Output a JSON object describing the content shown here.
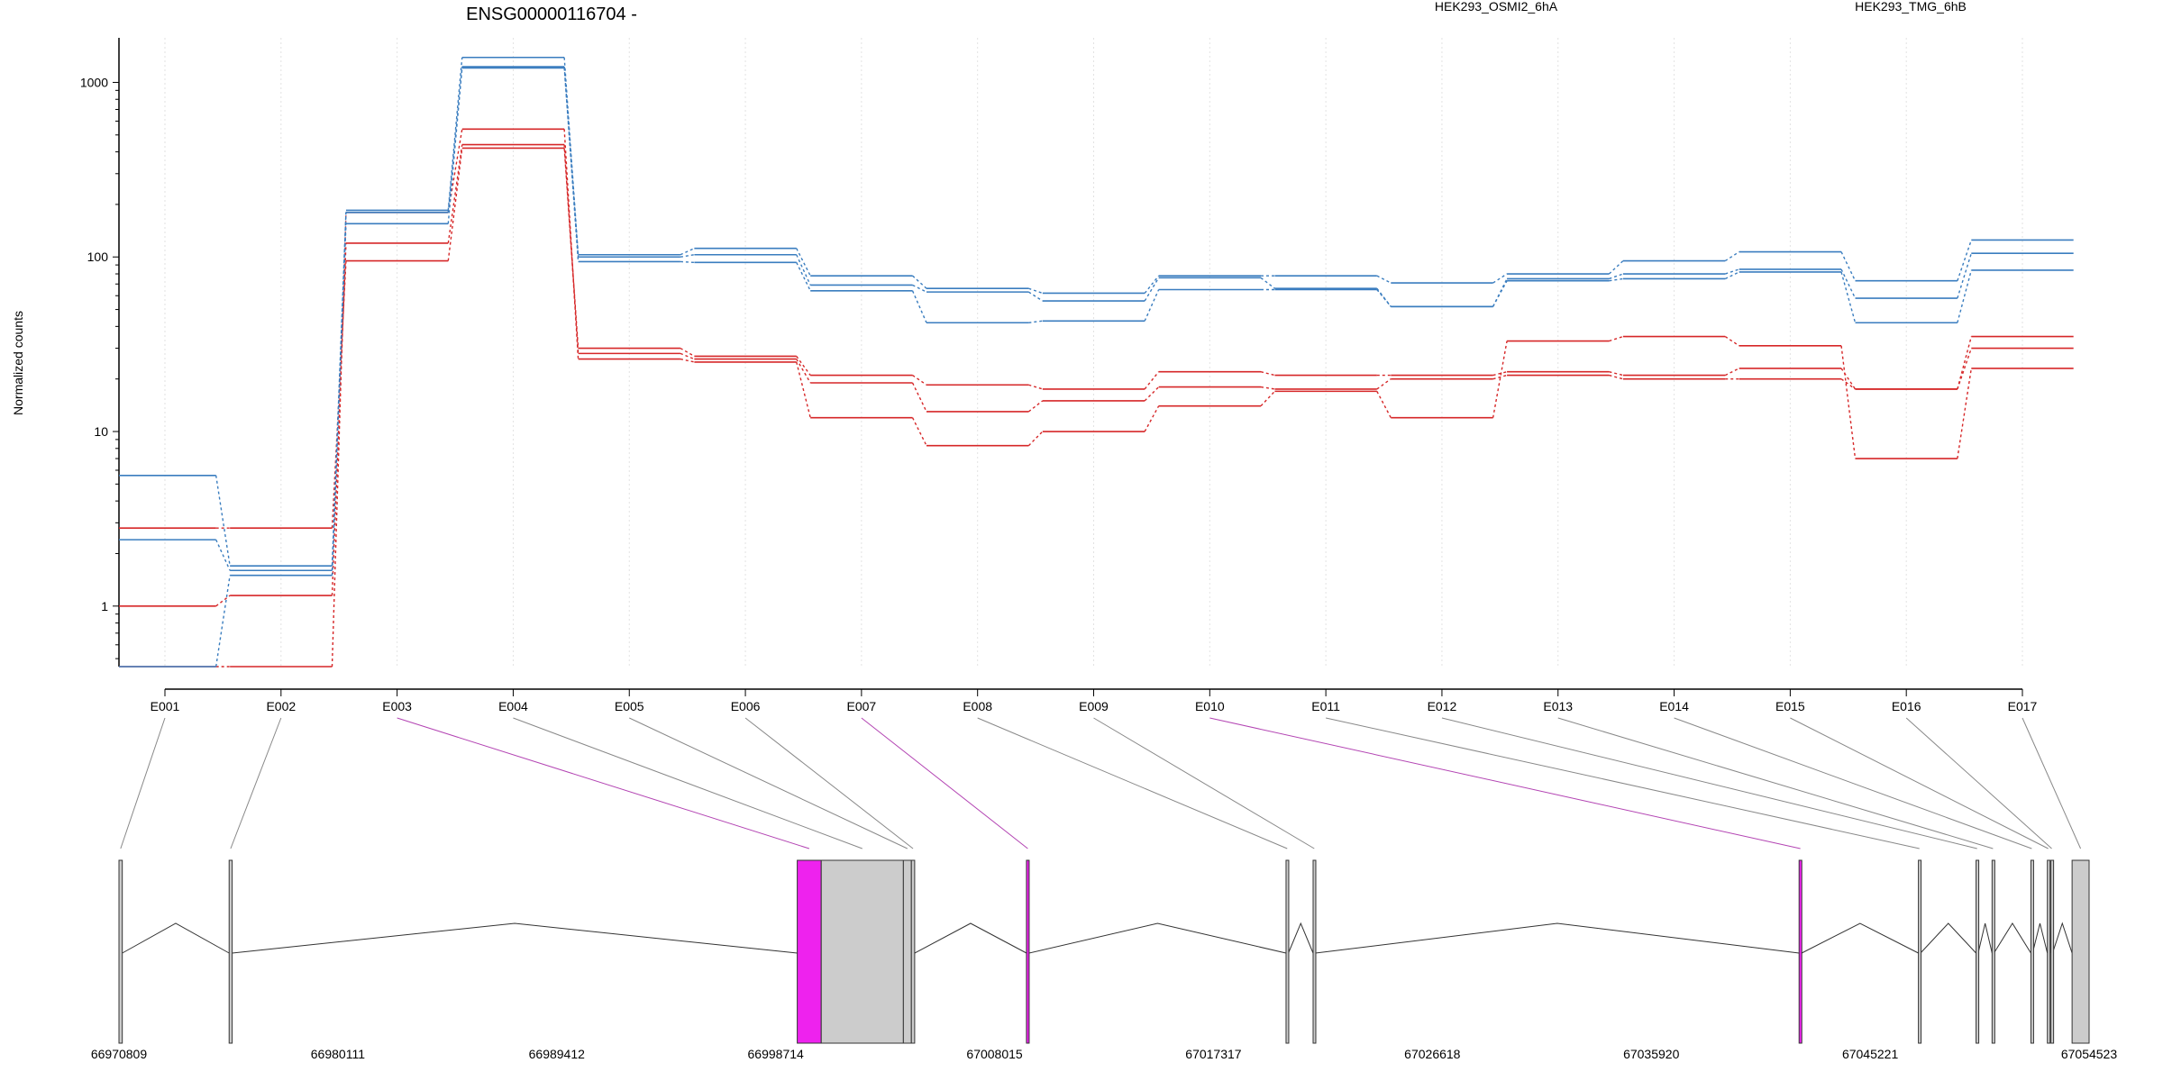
{
  "title": "ENSG00000116704 -",
  "ylabel": "Normalized counts",
  "legend": [
    {
      "label": "HEK293_OSMI2_6hA",
      "color": "#d62728"
    },
    {
      "label": "HEK293_TMG_6hB",
      "color": "#3a7dbf"
    }
  ],
  "chart_data": {
    "type": "line",
    "title": "ENSG00000116704 -",
    "ylabel": "Normalized counts",
    "yscale": "log",
    "ylim": [
      0.45,
      1800
    ],
    "yticks": [
      "1",
      "10",
      "100",
      "1000"
    ],
    "grid": "vertical dotted",
    "legend_placement": "top",
    "categories": [
      "E001",
      "E002",
      "E003",
      "E004",
      "E005",
      "E006",
      "E007",
      "E008",
      "E009",
      "E010",
      "E011",
      "E012",
      "E013",
      "E014",
      "E015",
      "E016",
      "E017"
    ],
    "series": [
      {
        "name": "HEK293_OSMI2_6hA",
        "color": "#d62728",
        "values": [
          2.8,
          2.8,
          95,
          420,
          30,
          27,
          21,
          18.5,
          17.5,
          22,
          21,
          21,
          22,
          21,
          23,
          17.5,
          35
        ]
      },
      {
        "name": "HEK293_OSMI2_6hA",
        "color": "#d62728",
        "values": [
          1.0,
          1.15,
          120,
          440,
          28,
          26,
          19,
          13,
          15,
          18,
          17.5,
          20,
          21,
          20,
          20,
          17.5,
          30
        ]
      },
      {
        "name": "HEK293_OSMI2_6hA",
        "color": "#d62728",
        "values": [
          0.45,
          0.45,
          180,
          540,
          26,
          25,
          12,
          8.3,
          10,
          14,
          17,
          12,
          33,
          35,
          31,
          7,
          23
        ]
      },
      {
        "name": "HEK293_TMG_6hB",
        "color": "#3a7dbf",
        "values": [
          5.6,
          1.7,
          185,
          1390,
          103,
          112,
          78,
          66,
          62,
          78,
          78,
          71,
          80,
          95,
          107,
          73,
          125
        ]
      },
      {
        "name": "HEK293_TMG_6hB",
        "color": "#3a7dbf",
        "values": [
          2.4,
          1.6,
          155,
          1230,
          100,
          103,
          69,
          63,
          56,
          76,
          66,
          52,
          75,
          80,
          85,
          58,
          105
        ]
      },
      {
        "name": "HEK293_TMG_6hB",
        "color": "#3a7dbf",
        "values": [
          0.45,
          1.5,
          180,
          1210,
          94,
          93,
          64,
          42,
          43,
          65,
          65,
          52,
          73,
          75,
          82,
          42,
          84
        ]
      }
    ]
  },
  "gene_model": {
    "coordinate_labels": [
      "66970809",
      "66980111",
      "66989412",
      "66998714",
      "67008015",
      "67017317",
      "67026618",
      "67035920",
      "67045221",
      "67054523"
    ],
    "coord_start": 66970809,
    "coord_end": 67054523,
    "highlight_color": "#ee22ee",
    "exons": [
      {
        "id": "E001",
        "start": 66970809,
        "end": 66970950,
        "highlight": false
      },
      {
        "id": "E002",
        "start": 66975490,
        "end": 66975620,
        "highlight": false
      },
      {
        "id": "E003",
        "start": 66999630,
        "end": 67000650,
        "highlight": true
      },
      {
        "id": "E004",
        "start": 67000650,
        "end": 67004140,
        "highlight": false
      },
      {
        "id": "E005",
        "start": 67004140,
        "end": 67004480,
        "highlight": false
      },
      {
        "id": "E006",
        "start": 67004480,
        "end": 67004620,
        "highlight": false
      },
      {
        "id": "E007",
        "start": 67009370,
        "end": 67009480,
        "highlight": true
      },
      {
        "id": "E008",
        "start": 67020400,
        "end": 67020500,
        "highlight": false
      },
      {
        "id": "E009",
        "start": 67021550,
        "end": 67021650,
        "highlight": false
      },
      {
        "id": "E010",
        "start": 67042200,
        "end": 67042310,
        "highlight": true
      },
      {
        "id": "E011",
        "start": 67047270,
        "end": 67047360,
        "highlight": false
      },
      {
        "id": "E012",
        "start": 67049720,
        "end": 67049810,
        "highlight": false
      },
      {
        "id": "E013",
        "start": 67050400,
        "end": 67050480,
        "highlight": false
      },
      {
        "id": "E014",
        "start": 67052050,
        "end": 67052120,
        "highlight": false
      },
      {
        "id": "E015",
        "start": 67052750,
        "end": 67052820,
        "highlight": false
      },
      {
        "id": "E016",
        "start": 67052900,
        "end": 67052970,
        "highlight": false
      },
      {
        "id": "E017",
        "start": 67053800,
        "end": 67054523,
        "highlight": false
      }
    ]
  }
}
